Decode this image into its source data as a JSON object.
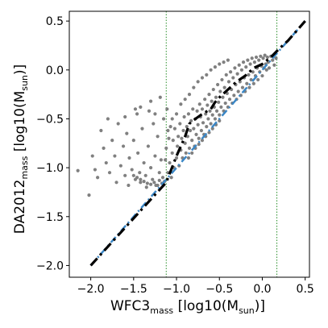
{
  "chart_data": {
    "type": "scatter",
    "xlabel": {
      "main": "WFC3",
      "sub": "mass",
      "unit_pre": " [log10(M",
      "unit_sub": "sun",
      "unit_post": ")]"
    },
    "ylabel": {
      "main": "DA2012",
      "sub": "mass",
      "unit_pre": " [log10(M",
      "unit_sub": "sun",
      "unit_post": ")]"
    },
    "xlim": [
      -2.25,
      0.55
    ],
    "ylim": [
      -2.12,
      0.6
    ],
    "xticks": [
      -2.0,
      -1.5,
      -1.0,
      -0.5,
      0.0,
      0.5
    ],
    "xtick_labels": [
      "−2.0",
      "−1.5",
      "−1.0",
      "−0.5",
      "0.0",
      "0.5"
    ],
    "yticks": [
      -2.0,
      -1.5,
      -1.0,
      -0.5,
      0.0,
      0.5
    ],
    "ytick_labels": [
      "−2.0",
      "−1.5",
      "−1.0",
      "−0.5",
      "0.0",
      "0.5"
    ],
    "vlines": [
      -1.12,
      0.17
    ],
    "grid": false,
    "colors": {
      "points": "#808080",
      "blue_line": "#3b87c6",
      "black_line": "#000000",
      "vline": "#2a8f2a"
    },
    "series": [
      {
        "kind": "scatter",
        "points": [
          [
            -2.15,
            -1.03
          ],
          [
            -2.02,
            -1.28
          ],
          [
            -1.98,
            -0.88
          ],
          [
            -1.95,
            -1.02
          ],
          [
            -1.92,
            -1.1
          ],
          [
            -1.88,
            -0.62
          ],
          [
            -1.85,
            -0.8
          ],
          [
            -1.82,
            -0.95
          ],
          [
            -1.8,
            -0.5
          ],
          [
            -1.78,
            -1.05
          ],
          [
            -1.75,
            -0.72
          ],
          [
            -1.72,
            -0.88
          ],
          [
            -1.7,
            -1.15
          ],
          [
            -1.68,
            -0.55
          ],
          [
            -1.65,
            -0.98
          ],
          [
            -1.62,
            -0.78
          ],
          [
            -1.6,
            -1.08
          ],
          [
            -1.58,
            -0.65
          ],
          [
            -1.56,
            -1.18
          ],
          [
            -1.55,
            -0.9
          ],
          [
            -1.52,
            -1.02
          ],
          [
            -1.5,
            -0.72
          ],
          [
            -1.48,
            -1.12
          ],
          [
            -1.46,
            -0.45
          ],
          [
            -1.45,
            -0.85
          ],
          [
            -1.43,
            -1.05
          ],
          [
            -1.42,
            -1.15
          ],
          [
            -1.4,
            -0.6
          ],
          [
            -1.38,
            -0.95
          ],
          [
            -1.36,
            -1.08
          ],
          [
            -1.35,
            -1.2
          ],
          [
            -1.33,
            -0.78
          ],
          [
            -1.32,
            -0.42
          ],
          [
            -1.3,
            -1.0
          ],
          [
            -1.28,
            -1.12
          ],
          [
            -1.27,
            -0.55
          ],
          [
            -1.25,
            -0.88
          ],
          [
            -1.24,
            -1.18
          ],
          [
            -1.22,
            -0.68
          ],
          [
            -1.2,
            -1.05
          ],
          [
            -1.19,
            -0.28
          ],
          [
            -1.18,
            -0.92
          ],
          [
            -1.16,
            -1.1
          ],
          [
            -1.15,
            -0.5
          ],
          [
            -1.14,
            -1.14
          ],
          [
            -1.42,
            -0.38
          ],
          [
            -1.48,
            -0.4
          ],
          [
            -1.3,
            -0.32
          ],
          [
            -1.6,
            -0.48
          ],
          [
            -1.25,
            -0.45
          ],
          [
            -1.46,
            -1.1
          ],
          [
            -1.42,
            -1.12
          ],
          [
            -1.38,
            -1.14
          ],
          [
            -1.34,
            -1.16
          ],
          [
            -1.3,
            -1.17
          ],
          [
            -1.26,
            -1.15
          ],
          [
            -1.22,
            -1.18
          ],
          [
            -1.2,
            -1.13
          ],
          [
            -1.17,
            -1.16
          ],
          [
            -1.5,
            -1.08
          ],
          [
            -1.1,
            -1.05
          ],
          [
            -1.08,
            -0.95
          ],
          [
            -1.06,
            -1.1
          ],
          [
            -1.05,
            -0.85
          ],
          [
            -1.04,
            -0.72
          ],
          [
            -1.03,
            -1.0
          ],
          [
            -1.02,
            -0.6
          ],
          [
            -1.0,
            -0.9
          ],
          [
            -0.99,
            -0.78
          ],
          [
            -0.98,
            -0.68
          ],
          [
            -0.97,
            -0.98
          ],
          [
            -0.96,
            -0.55
          ],
          [
            -0.95,
            -0.82
          ],
          [
            -0.94,
            -0.7
          ],
          [
            -0.93,
            -0.9
          ],
          [
            -0.92,
            -0.62
          ],
          [
            -0.91,
            -0.48
          ],
          [
            -0.9,
            -0.75
          ],
          [
            -0.89,
            -0.85
          ],
          [
            -0.88,
            -0.58
          ],
          [
            -0.87,
            -0.68
          ],
          [
            -0.86,
            -0.45
          ],
          [
            -0.85,
            -0.8
          ],
          [
            -0.84,
            -0.62
          ],
          [
            -0.83,
            -0.52
          ],
          [
            -0.82,
            -0.72
          ],
          [
            -0.81,
            -0.4
          ],
          [
            -0.8,
            -0.6
          ],
          [
            -0.79,
            -0.78
          ],
          [
            -0.78,
            -0.5
          ],
          [
            -0.77,
            -0.66
          ],
          [
            -0.76,
            -0.42
          ],
          [
            -0.75,
            -0.56
          ],
          [
            -0.74,
            -0.7
          ],
          [
            -0.73,
            -0.35
          ],
          [
            -0.72,
            -0.48
          ],
          [
            -0.71,
            -0.62
          ],
          [
            -0.7,
            -0.4
          ],
          [
            -0.69,
            -0.54
          ],
          [
            -0.68,
            -0.66
          ],
          [
            -0.67,
            -0.3
          ],
          [
            -0.66,
            -0.45
          ],
          [
            -0.65,
            -0.58
          ],
          [
            -0.64,
            -0.36
          ],
          [
            -0.63,
            -0.5
          ],
          [
            -0.62,
            -0.25
          ],
          [
            -0.61,
            -0.42
          ],
          [
            -0.6,
            -0.55
          ],
          [
            -0.59,
            -0.32
          ],
          [
            -0.58,
            -0.46
          ],
          [
            -0.57,
            -0.2
          ],
          [
            -0.56,
            -0.38
          ],
          [
            -0.55,
            -0.5
          ],
          [
            -0.54,
            -0.28
          ],
          [
            -0.53,
            -0.42
          ],
          [
            -0.52,
            -0.15
          ],
          [
            -0.51,
            -0.33
          ],
          [
            -0.5,
            -0.46
          ],
          [
            -0.49,
            -0.22
          ],
          [
            -0.48,
            -0.38
          ],
          [
            -0.47,
            -0.1
          ],
          [
            -0.46,
            -0.28
          ],
          [
            -0.45,
            -0.42
          ],
          [
            -0.44,
            -0.18
          ],
          [
            -0.43,
            -0.34
          ],
          [
            -0.42,
            -0.05
          ],
          [
            -0.41,
            -0.24
          ],
          [
            -0.4,
            -0.38
          ],
          [
            -0.39,
            -0.12
          ],
          [
            -0.38,
            -0.3
          ],
          [
            -0.37,
            -0.02
          ],
          [
            -0.36,
            -0.2
          ],
          [
            -0.35,
            -0.34
          ],
          [
            -0.34,
            -0.08
          ],
          [
            -0.33,
            -0.26
          ],
          [
            -0.32,
            0.02
          ],
          [
            -0.31,
            -0.15
          ],
          [
            -0.3,
            -0.3
          ],
          [
            -0.29,
            -0.04
          ],
          [
            -0.28,
            -0.22
          ],
          [
            -0.27,
            0.05
          ],
          [
            -0.26,
            -0.12
          ],
          [
            -0.25,
            -0.26
          ],
          [
            -0.24,
            0.0
          ],
          [
            -0.23,
            -0.18
          ],
          [
            -0.22,
            0.08
          ],
          [
            -0.21,
            -0.08
          ],
          [
            -0.2,
            -0.22
          ],
          [
            -0.19,
            0.03
          ],
          [
            -0.18,
            -0.14
          ],
          [
            -0.17,
            0.1
          ],
          [
            -0.16,
            -0.05
          ],
          [
            -0.15,
            -0.18
          ],
          [
            -0.14,
            0.06
          ],
          [
            -0.13,
            -0.1
          ],
          [
            -0.12,
            0.12
          ],
          [
            -0.11,
            -0.02
          ],
          [
            -0.1,
            -0.14
          ],
          [
            -0.09,
            0.08
          ],
          [
            -0.08,
            -0.06
          ],
          [
            -0.07,
            0.13
          ],
          [
            -0.06,
            0.02
          ],
          [
            -0.05,
            -0.1
          ],
          [
            -0.04,
            0.1
          ],
          [
            -0.03,
            -0.02
          ],
          [
            -0.02,
            0.14
          ],
          [
            -0.01,
            0.04
          ],
          [
            0.0,
            -0.06
          ],
          [
            0.01,
            0.12
          ],
          [
            0.02,
            0.02
          ],
          [
            0.03,
            0.15
          ],
          [
            0.04,
            0.06
          ],
          [
            0.05,
            0.0
          ],
          [
            0.06,
            0.13
          ],
          [
            0.07,
            0.08
          ],
          [
            0.08,
            0.02
          ],
          [
            0.1,
            0.14
          ],
          [
            0.12,
            0.1
          ],
          [
            0.14,
            0.05
          ],
          [
            0.16,
            0.12
          ],
          [
            -0.95,
            -0.35
          ],
          [
            -0.9,
            -0.3
          ],
          [
            -1.0,
            -0.45
          ],
          [
            -0.85,
            -0.25
          ],
          [
            -1.05,
            -0.5
          ],
          [
            -0.8,
            -0.18
          ],
          [
            -1.1,
            -0.62
          ],
          [
            -0.75,
            -0.12
          ],
          [
            -0.7,
            -0.08
          ],
          [
            -0.65,
            -0.05
          ],
          [
            -0.6,
            0.0
          ],
          [
            -0.55,
            0.03
          ],
          [
            -0.5,
            0.06
          ],
          [
            -0.45,
            0.08
          ],
          [
            -0.4,
            0.1
          ],
          [
            -0.86,
            -0.9
          ],
          [
            -0.82,
            -0.85
          ],
          [
            -0.78,
            -0.8
          ],
          [
            -0.74,
            -0.76
          ],
          [
            -0.7,
            -0.72
          ],
          [
            -0.66,
            -0.68
          ],
          [
            -0.62,
            -0.64
          ],
          [
            -0.58,
            -0.6
          ],
          [
            -0.54,
            -0.56
          ],
          [
            -0.5,
            -0.52
          ],
          [
            -1.12,
            -0.8
          ],
          [
            -1.09,
            -0.7
          ],
          [
            -1.07,
            -0.58
          ],
          [
            -1.13,
            -0.92
          ],
          [
            -1.11,
            -0.4
          ]
        ]
      },
      {
        "kind": "line",
        "style": "blue-dashdot",
        "points": [
          [
            -2.0,
            -2.0
          ],
          [
            0.5,
            0.5
          ]
        ]
      },
      {
        "kind": "line",
        "style": "black-dashdot",
        "points": [
          [
            -2.0,
            -2.0
          ],
          [
            -1.12,
            -1.15
          ],
          [
            -1.0,
            -0.88
          ],
          [
            -0.9,
            -0.68
          ],
          [
            -0.85,
            -0.55
          ],
          [
            -0.78,
            -0.5
          ],
          [
            -0.7,
            -0.45
          ],
          [
            -0.6,
            -0.4
          ],
          [
            -0.55,
            -0.33
          ],
          [
            -0.5,
            -0.28
          ],
          [
            -0.4,
            -0.2
          ],
          [
            -0.3,
            -0.12
          ],
          [
            -0.2,
            -0.06
          ],
          [
            -0.1,
            0.02
          ],
          [
            0.0,
            0.06
          ],
          [
            0.1,
            0.13
          ],
          [
            0.2,
            0.22
          ],
          [
            0.3,
            0.3
          ],
          [
            0.4,
            0.4
          ],
          [
            0.5,
            0.5
          ]
        ]
      }
    ]
  }
}
